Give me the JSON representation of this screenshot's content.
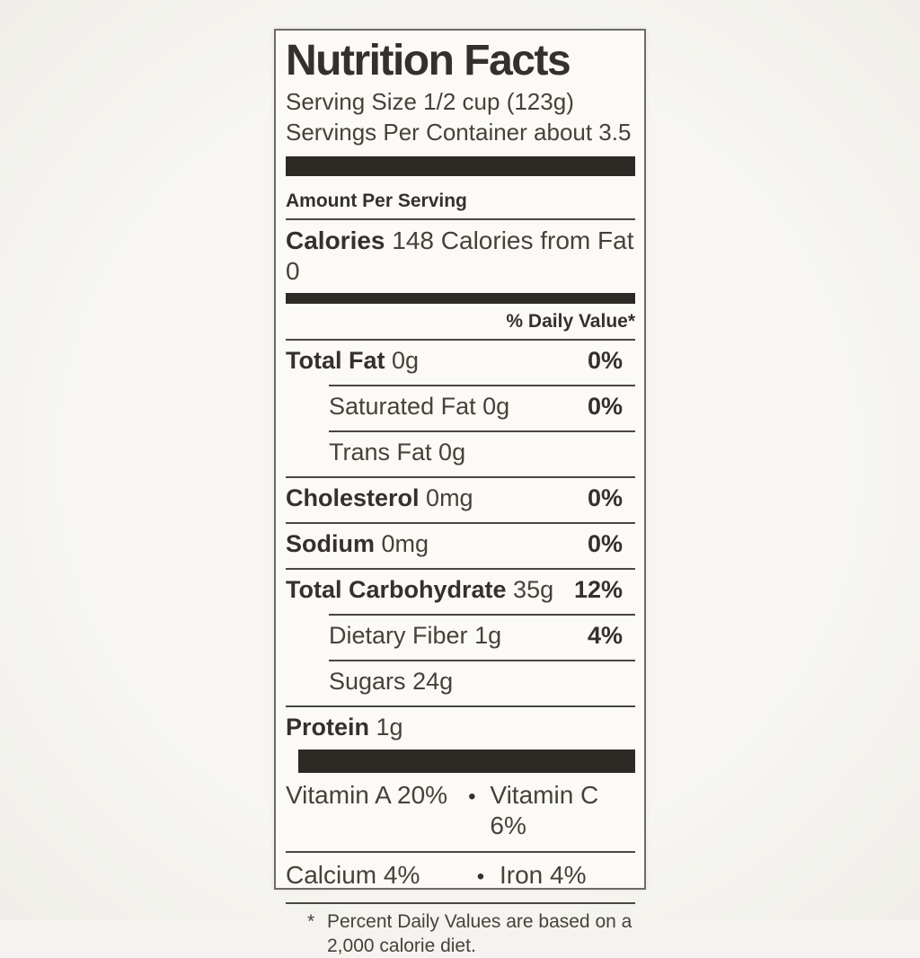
{
  "label": {
    "title": "Nutrition Facts",
    "serving_size": "Serving Size 1/2 cup (123g)",
    "servings_per_container": "Servings Per Container about 3.5",
    "amount_per_serving": "Amount Per Serving",
    "calories": {
      "label": "Calories",
      "rest": "148 Calories from Fat 0"
    },
    "daily_value_header": "% Daily Value*",
    "rows": [
      {
        "name": "Total Fat",
        "amount": "0g",
        "dv": "0%"
      },
      {
        "name": "Saturated Fat",
        "amount": "0g",
        "dv": "0%"
      },
      {
        "name": "Trans Fat",
        "amount": "0g",
        "dv": ""
      },
      {
        "name": "Cholesterol",
        "amount": "0mg",
        "dv": "0%"
      },
      {
        "name": "Sodium",
        "amount": "0mg",
        "dv": "0%"
      },
      {
        "name": "Total Carbohydrate",
        "amount": "35g",
        "dv": "12%"
      },
      {
        "name": "Dietary Fiber",
        "amount": "1g",
        "dv": "4%"
      },
      {
        "name": "Sugars",
        "amount": "24g",
        "dv": ""
      },
      {
        "name": "Protein",
        "amount": "1g",
        "dv": ""
      }
    ],
    "bullet": "•",
    "micronutrients": [
      {
        "left": "Vitamin A 20%",
        "right": "Vitamin C 6%"
      },
      {
        "left": "Calcium 4%",
        "right": "Iron 4%"
      }
    ],
    "footnote_marker": "*",
    "footnote_text": "Percent Daily Values are based on a 2,000 calorie diet.",
    "colors": {
      "page_background": "#f4f3ef",
      "card_background": "#fbfaf6",
      "text": "#3a3733",
      "bars_and_rules": "#2d2a26"
    }
  }
}
